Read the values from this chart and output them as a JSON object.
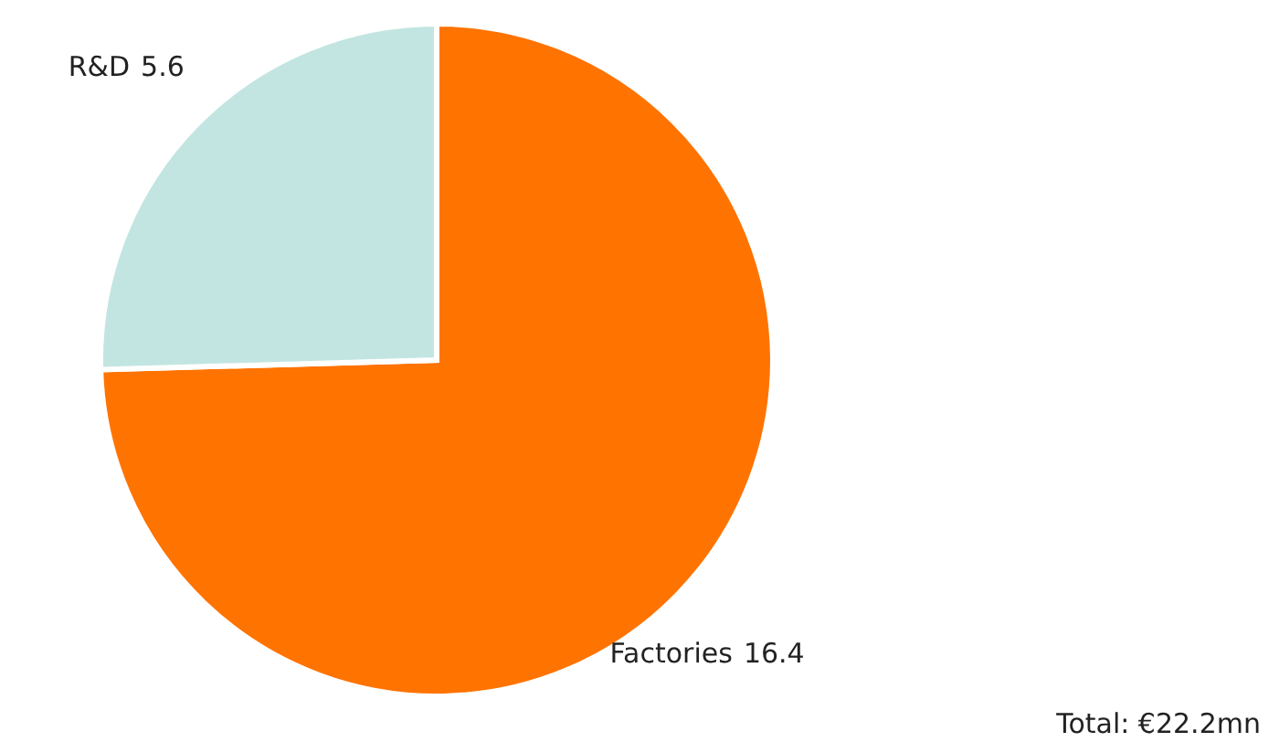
{
  "chart_data": {
    "type": "pie",
    "categories": [
      "Factories",
      "R&D"
    ],
    "values": [
      16.4,
      5.6
    ],
    "colors": [
      "#ff7300",
      "#c2e5e1"
    ],
    "data_labels": true,
    "annotations": [
      "Total: €22.2mn"
    ]
  }
}
